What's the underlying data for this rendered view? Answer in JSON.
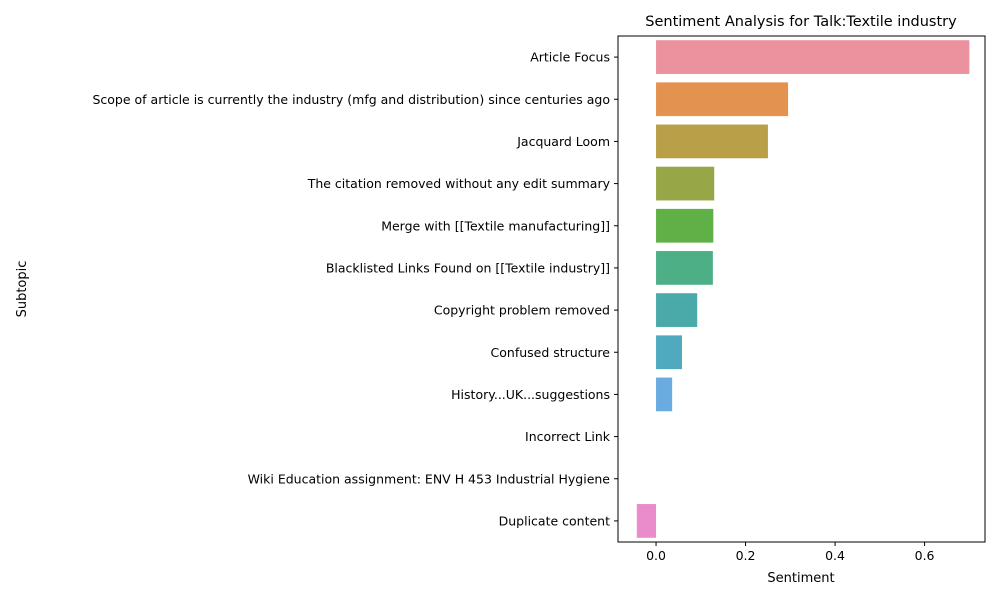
{
  "chart_data": {
    "type": "bar",
    "orientation": "horizontal",
    "title": "Sentiment Analysis for Talk:Textile industry",
    "xlabel": "Sentiment",
    "ylabel": "Subtopic",
    "xlim": [
      -0.085,
      0.735
    ],
    "xticks": [
      0.0,
      0.2,
      0.4,
      0.6
    ],
    "xtick_labels": [
      "0.0",
      "0.2",
      "0.4",
      "0.6"
    ],
    "grid": false,
    "legend": "none",
    "categories": [
      "Article Focus",
      "Scope of article is currently the industry (mfg and distribution) since centuries ago",
      "Jacquard Loom",
      "The citation removed without any edit summary",
      "Merge with [[Textile manufacturing]]",
      "Blacklisted Links Found on [[Textile industry]]",
      "Copyright problem removed",
      "Confused structure",
      "History...UK...suggestions",
      "Incorrect Link",
      "Wiki Education assignment: ENV H 453 Industrial Hygiene",
      "Duplicate content"
    ],
    "values": [
      0.7,
      0.295,
      0.25,
      0.13,
      0.128,
      0.127,
      0.092,
      0.058,
      0.036,
      0.0,
      0.0,
      -0.043
    ],
    "colors": [
      "#ec919e",
      "#e39250",
      "#b99f47",
      "#97a646",
      "#5fb046",
      "#4caf86",
      "#4aa9a9",
      "#4faabf",
      "#6aabe0",
      "#ab9fe6",
      "#d890e5",
      "#ea8bcb"
    ]
  }
}
